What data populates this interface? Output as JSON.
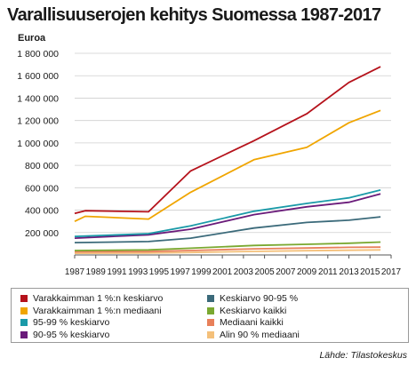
{
  "title": "Varallisuuserojen kehitys Suomessa 1987-2017",
  "chart_data": {
    "type": "line",
    "title": "Varallisuuserojen kehitys Suomessa 1987-2017",
    "ylabel": "Euroa",
    "ylim": [
      0,
      1800000
    ],
    "xlim": [
      1987,
      2017
    ],
    "grid": true,
    "y_ticks": [
      200000,
      400000,
      600000,
      800000,
      1000000,
      1200000,
      1400000,
      1600000,
      1800000
    ],
    "y_tick_labels": [
      "200 000",
      "400 000",
      "600 000",
      "800 000",
      "1 000 000",
      "1 200 000",
      "1 400 000",
      "1 600 000",
      "1 800 000"
    ],
    "x_ticks": [
      1987,
      1989,
      1991,
      1993,
      1995,
      1997,
      1999,
      2001,
      2003,
      2005,
      2007,
      2009,
      2011,
      2013,
      2015,
      2017
    ],
    "x_tick_labels": [
      "1987",
      "1989",
      "1991",
      "1993",
      "1995",
      "1997",
      "1999",
      "2001",
      "2003",
      "2005",
      "2007",
      "2009",
      "2011",
      "2013",
      "2015",
      "2017"
    ],
    "legend_position": "bottom",
    "series": [
      {
        "name": "Varakkaimman 1 %:n keskiarvo",
        "color": "#b5121b",
        "x": [
          1987,
          1988,
          1994,
          1998,
          2004,
          2009,
          2013,
          2016
        ],
        "y": [
          370000,
          395000,
          385000,
          750000,
          1020000,
          1260000,
          1540000,
          1680000
        ]
      },
      {
        "name": "Varakkaimman 1 %:n mediaani",
        "color": "#f0a500",
        "x": [
          1987,
          1988,
          1994,
          1998,
          2004,
          2009,
          2013,
          2016
        ],
        "y": [
          300000,
          345000,
          320000,
          560000,
          850000,
          960000,
          1180000,
          1290000
        ]
      },
      {
        "name": "95-99 % keskiarvo",
        "color": "#1a9aa8",
        "x": [
          1987,
          1994,
          1998,
          2004,
          2009,
          2013,
          2016
        ],
        "y": [
          165000,
          190000,
          260000,
          390000,
          460000,
          510000,
          580000
        ]
      },
      {
        "name": "90-95 % keskiarvo",
        "color": "#6a1b7a",
        "x": [
          1987,
          1994,
          1998,
          2004,
          2009,
          2013,
          2016
        ],
        "y": [
          150000,
          180000,
          230000,
          360000,
          430000,
          470000,
          545000
        ]
      },
      {
        "name": "Keskiarvo 90-95 %",
        "color": "#3b6a7a",
        "x": [
          1987,
          1994,
          1998,
          2004,
          2009,
          2013,
          2016
        ],
        "y": [
          110000,
          120000,
          150000,
          240000,
          290000,
          310000,
          340000
        ]
      },
      {
        "name": "Keskiarvo kaikki",
        "color": "#7aa830",
        "x": [
          1987,
          1994,
          1998,
          2004,
          2009,
          2013,
          2016
        ],
        "y": [
          40000,
          45000,
          60000,
          85000,
          95000,
          105000,
          115000
        ]
      },
      {
        "name": "Mediaani kaikki",
        "color": "#e8805a",
        "x": [
          1987,
          1994,
          1998,
          2004,
          2009,
          2013,
          2016
        ],
        "y": [
          28000,
          30000,
          40000,
          55000,
          62000,
          68000,
          70000
        ]
      },
      {
        "name": "Alin 90 % mediaani",
        "color": "#f4c07a",
        "x": [
          1987,
          1994,
          1998,
          2004,
          2009,
          2013,
          2016
        ],
        "y": [
          15000,
          17000,
          22000,
          32000,
          38000,
          42000,
          45000
        ]
      }
    ]
  },
  "source": "Lähde: Tilastokeskus"
}
